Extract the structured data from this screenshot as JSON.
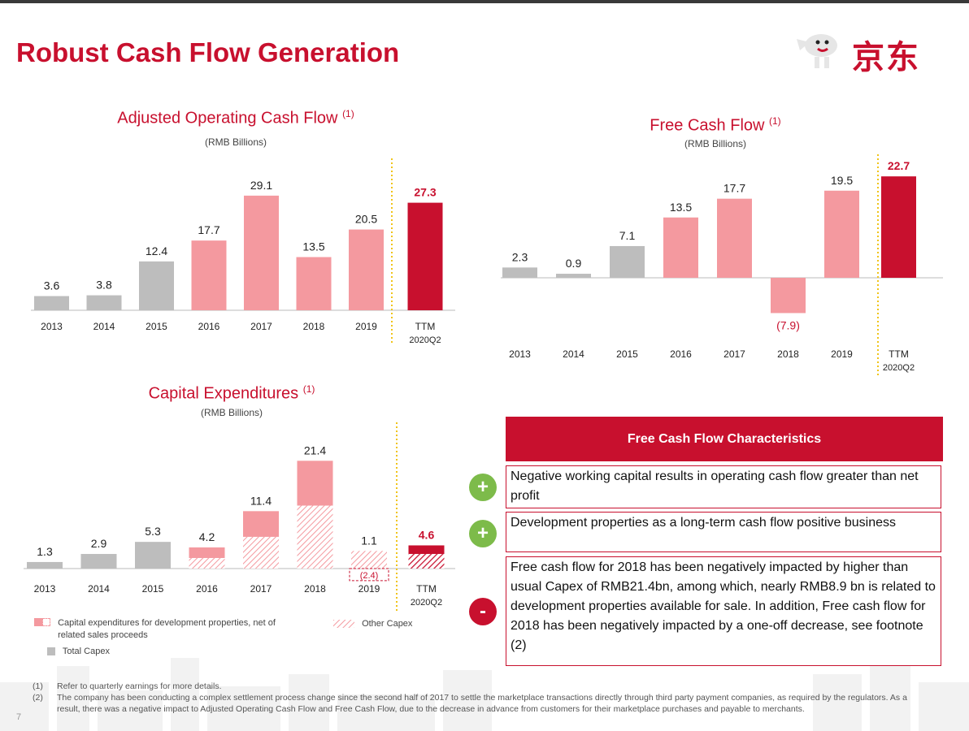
{
  "page": {
    "title": "Robust Cash Flow Generation",
    "logo_text": "京东",
    "page_number": "7"
  },
  "colors": {
    "brand_red": "#c8102e",
    "pink": "#f4999f",
    "gray": "#bdbdbd",
    "plus_green": "#7dbb4a"
  },
  "chart_data": [
    {
      "id": "aocf",
      "type": "bar",
      "title": "Adjusted Operating Cash Flow",
      "title_note": "(1)",
      "subtitle": "(RMB Billions)",
      "categories": [
        "2013",
        "2014",
        "2015",
        "2016",
        "2017",
        "2018",
        "2019",
        "TTM|2020Q2"
      ],
      "values": [
        3.6,
        3.8,
        12.4,
        17.7,
        29.1,
        13.5,
        20.5,
        27.3
      ],
      "labels": [
        "3.6",
        "3.8",
        "12.4",
        "17.7",
        "29.1",
        "13.5",
        "20.5",
        "27.3"
      ],
      "colors": [
        "gray",
        "gray",
        "gray",
        "pink",
        "pink",
        "pink",
        "pink",
        "red"
      ],
      "ylim": [
        0,
        30
      ]
    },
    {
      "id": "fcf",
      "type": "bar",
      "title": "Free Cash Flow",
      "title_note": "(1)",
      "subtitle": "(RMB Billions)",
      "categories": [
        "2013",
        "2014",
        "2015",
        "2016",
        "2017",
        "2018",
        "2019",
        "TTM|2020Q2"
      ],
      "values": [
        2.3,
        0.9,
        7.1,
        13.5,
        17.7,
        -7.9,
        19.5,
        22.7
      ],
      "labels": [
        "2.3",
        "0.9",
        "7.1",
        "13.5",
        "17.7",
        "(7.9)",
        "19.5",
        "22.7"
      ],
      "colors": [
        "gray",
        "gray",
        "gray",
        "pink",
        "pink",
        "pink",
        "pink",
        "red"
      ],
      "ylim": [
        -8,
        23
      ]
    },
    {
      "id": "capex",
      "type": "bar",
      "stacked": true,
      "title": "Capital Expenditures",
      "title_note": "(1)",
      "subtitle": "(RMB Billions)",
      "categories": [
        "2013",
        "2014",
        "2015",
        "2016",
        "2017",
        "2018",
        "2019",
        "TTM|2020Q2"
      ],
      "totals": [
        1.3,
        2.9,
        5.3,
        4.2,
        11.4,
        21.4,
        1.1,
        4.6
      ],
      "total_labels": [
        "1.3",
        "2.9",
        "5.3",
        "4.2",
        "11.4",
        "21.4",
        "1.1",
        "4.6"
      ],
      "other_capex": [
        null,
        null,
        null,
        2.1,
        6.3,
        12.5,
        3.5,
        2.9
      ],
      "development_properties": [
        null,
        null,
        null,
        2.1,
        5.1,
        8.9,
        -2.4,
        1.7
      ],
      "negative_label": "(2.4)",
      "ylim": [
        -3,
        22
      ],
      "legend": {
        "dev": "Capital expenditures for development properties, net of related sales proceeds",
        "other": "Other Capex",
        "total": "Total Capex"
      }
    }
  ],
  "fcf_characteristics": {
    "header": "Free Cash Flow Characteristics",
    "items": [
      {
        "sign": "+",
        "text": "Negative working capital results in operating cash flow greater than net profit"
      },
      {
        "sign": "+",
        "text": "Development properties as a long-term cash flow positive business"
      },
      {
        "sign": "-",
        "text": "Free cash flow for 2018 has been negatively impacted by higher than usual Capex of RMB21.4bn, among which, nearly RMB8.9 bn is related to development properties available for sale. In addition, Free cash flow for 2018 has been negatively impacted by a one-off decrease, see footnote (2)"
      }
    ]
  },
  "footnotes": [
    {
      "num": "(1)",
      "text": "Refer to quarterly earnings for more details."
    },
    {
      "num": "(2)",
      "text": "The company has been conducting a complex settlement process change since the second half of 2017 to settle the marketplace transactions directly through third party payment companies, as required by the regulators. As a result, there was a negative impact to Adjusted Operating Cash Flow and Free Cash Flow, due to the decrease in advance from customers for their marketplace purchases and payable to merchants."
    }
  ]
}
